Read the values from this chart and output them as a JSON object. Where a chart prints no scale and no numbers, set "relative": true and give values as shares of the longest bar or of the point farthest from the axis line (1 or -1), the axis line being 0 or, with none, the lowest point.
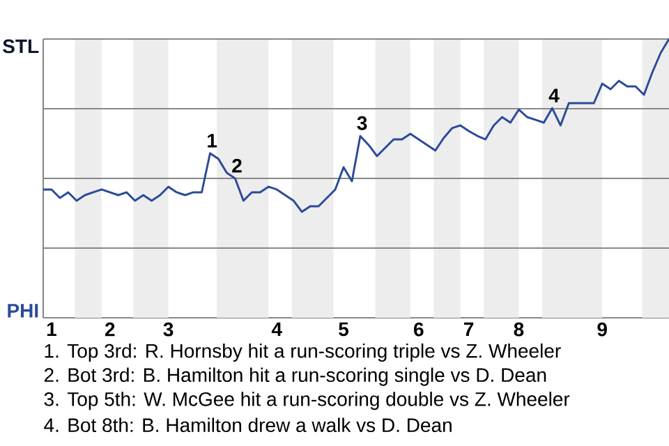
{
  "chart_data": {
    "type": "line",
    "relative": true,
    "grid": "y",
    "categories": [
      null,
      "1",
      null,
      null,
      null,
      null,
      null,
      null,
      "2",
      null,
      null,
      null,
      null,
      null,
      null,
      "3",
      null,
      null,
      null,
      null,
      null,
      null,
      null,
      null,
      null,
      null,
      null,
      null,
      "4",
      null,
      null,
      null,
      null,
      null,
      null,
      null,
      "5",
      null,
      null,
      null,
      null,
      null,
      null,
      null,
      null,
      "6",
      null,
      null,
      null,
      null,
      null,
      "7",
      null,
      null,
      null,
      null,
      null,
      "8",
      null,
      null,
      null,
      null,
      null,
      null,
      null,
      null,
      null,
      "9",
      null,
      null,
      null,
      null,
      null,
      null,
      null,
      null
    ],
    "series": [
      {
        "color": "#2a4a9a",
        "values": [
          0.46,
          0.46,
          0.43,
          0.45,
          0.42,
          0.44,
          0.45,
          0.46,
          0.45,
          0.44,
          0.45,
          0.42,
          0.44,
          0.42,
          0.44,
          0.47,
          0.45,
          0.44,
          0.45,
          0.45,
          0.59,
          0.57,
          0.52,
          0.5,
          0.42,
          0.45,
          0.45,
          0.47,
          0.46,
          0.44,
          0.42,
          0.38,
          0.4,
          0.4,
          0.43,
          0.46,
          0.54,
          0.49,
          0.652,
          0.62,
          0.58,
          0.61,
          0.64,
          0.64,
          0.66,
          0.64,
          0.62,
          0.6,
          0.645,
          0.68,
          0.69,
          0.67,
          0.653,
          0.64,
          0.69,
          0.72,
          0.7,
          0.747,
          0.72,
          0.71,
          0.7,
          0.752,
          0.69,
          0.77,
          0.77,
          0.77,
          0.77,
          0.84,
          0.82,
          0.85,
          0.83,
          0.83,
          0.8,
          0.88,
          0.95,
          1
        ]
      }
    ],
    "annotations": [
      "STL",
      "PHI",
      {
        "text": "1",
        "y": 0.59
      },
      {
        "text": "2",
        "y": 0.5
      },
      {
        "text": "3",
        "y": 0.652
      },
      {
        "text": "4",
        "y": 0.752
      },
      "1. Top 3rd: R. Hornsby hit a run-scoring triple vs Z. Wheeler",
      "2. Bot 3rd: B. Hamilton hit a run-scoring single vs D. Dean",
      "3. Top 5th: W. McGee hit a run-scoring double vs Z. Wheeler",
      "4. Bot 8th: B. Hamilton drew a walk vs D. Dean"
    ]
  }
}
